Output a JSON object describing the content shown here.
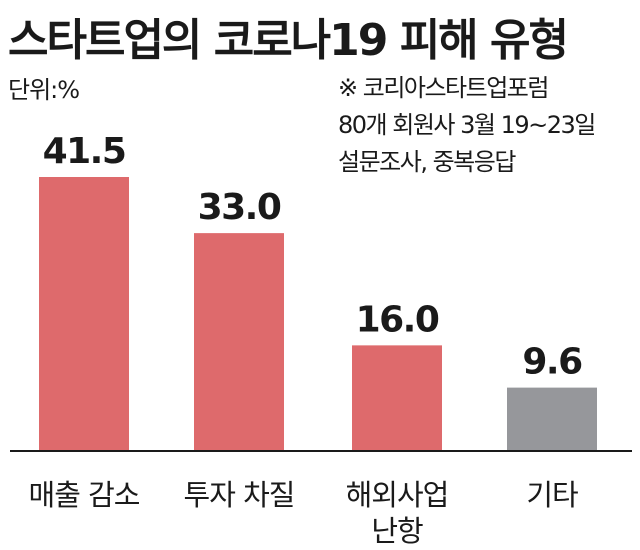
{
  "chart_data": {
    "type": "bar",
    "title": "스타트업의 코로나19 피해 유형",
    "unit_label": "단위:%",
    "source_note": [
      "※ 코리아스타트업포럼",
      "80개 회원사 3월 19~23일",
      "설문조사, 중복응답"
    ],
    "categories": [
      [
        "매출 감소"
      ],
      [
        "투자 차질"
      ],
      [
        "해외사업",
        "난항"
      ],
      [
        "기타"
      ]
    ],
    "values": [
      41.5,
      33.0,
      16.0,
      9.6
    ],
    "value_labels": [
      "41.5",
      "33.0",
      "16.0",
      "9.6"
    ],
    "colors": [
      "#de6a6c",
      "#de6a6c",
      "#de6a6c",
      "#96979b"
    ],
    "ylim": [
      0,
      41.5
    ],
    "grid": false
  }
}
